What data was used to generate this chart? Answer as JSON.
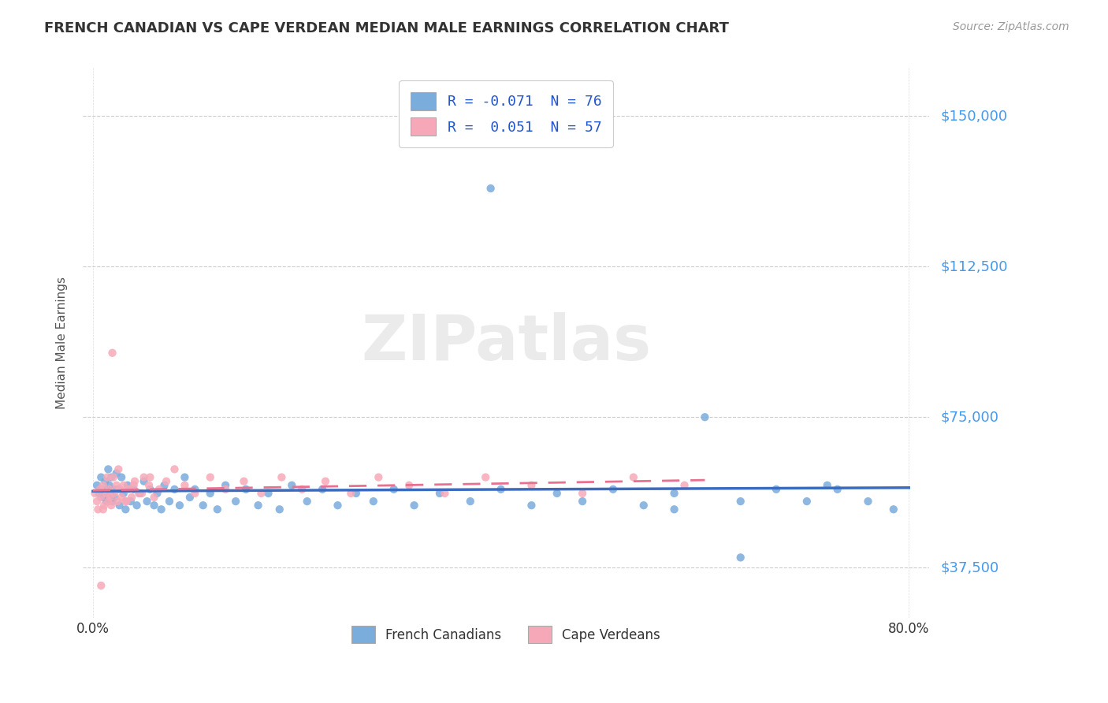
{
  "title": "FRENCH CANADIAN VS CAPE VERDEAN MEDIAN MALE EARNINGS CORRELATION CHART",
  "source": "Source: ZipAtlas.com",
  "ylabel": "Median Male Earnings",
  "xlim": [
    -0.01,
    0.82
  ],
  "ylim": [
    25000,
    162000
  ],
  "yticks": [
    37500,
    75000,
    112500,
    150000
  ],
  "ytick_labels": [
    "$37,500",
    "$75,000",
    "$112,500",
    "$150,000"
  ],
  "xticks": [
    0.0,
    0.8
  ],
  "xtick_labels": [
    "0.0%",
    "80.0%"
  ],
  "blue_color": "#7aacdc",
  "pink_color": "#f7a8b8",
  "blue_line_color": "#3a6bbf",
  "pink_line_color": "#e87090",
  "bg_color": "#ffffff",
  "legend_R_blue": "-0.071",
  "legend_N_blue": "76",
  "legend_R_pink": "0.051",
  "legend_N_pink": "57",
  "legend_label_blue": "French Canadians",
  "legend_label_pink": "Cape Verdeans",
  "watermark": "ZIPatlas",
  "blue_scatter_x": [
    0.004,
    0.006,
    0.008,
    0.009,
    0.011,
    0.012,
    0.013,
    0.014,
    0.015,
    0.016,
    0.017,
    0.018,
    0.019,
    0.02,
    0.021,
    0.023,
    0.025,
    0.026,
    0.028,
    0.03,
    0.032,
    0.034,
    0.037,
    0.04,
    0.043,
    0.046,
    0.05,
    0.053,
    0.056,
    0.06,
    0.063,
    0.067,
    0.07,
    0.075,
    0.08,
    0.085,
    0.09,
    0.095,
    0.1,
    0.108,
    0.115,
    0.122,
    0.13,
    0.14,
    0.15,
    0.162,
    0.172,
    0.183,
    0.195,
    0.21,
    0.225,
    0.24,
    0.258,
    0.275,
    0.295,
    0.315,
    0.34,
    0.37,
    0.4,
    0.43,
    0.39,
    0.455,
    0.48,
    0.51,
    0.54,
    0.57,
    0.6,
    0.635,
    0.67,
    0.7,
    0.73,
    0.76,
    0.785,
    0.72,
    0.635,
    0.57
  ],
  "blue_scatter_y": [
    58000,
    56000,
    60000,
    57000,
    55000,
    59000,
    54000,
    57000,
    62000,
    58000,
    56000,
    60000,
    54000,
    57000,
    55000,
    61000,
    57000,
    53000,
    60000,
    56000,
    52000,
    58000,
    54000,
    57000,
    53000,
    56000,
    59000,
    54000,
    57000,
    53000,
    56000,
    52000,
    58000,
    54000,
    57000,
    53000,
    60000,
    55000,
    57000,
    53000,
    56000,
    52000,
    58000,
    54000,
    57000,
    53000,
    56000,
    52000,
    58000,
    54000,
    57000,
    53000,
    56000,
    54000,
    57000,
    53000,
    56000,
    54000,
    57000,
    53000,
    132000,
    56000,
    54000,
    57000,
    53000,
    56000,
    75000,
    54000,
    57000,
    54000,
    57000,
    54000,
    52000,
    58000,
    40000,
    52000
  ],
  "pink_scatter_x": [
    0.002,
    0.004,
    0.005,
    0.007,
    0.008,
    0.01,
    0.011,
    0.013,
    0.014,
    0.015,
    0.016,
    0.017,
    0.018,
    0.02,
    0.021,
    0.023,
    0.024,
    0.026,
    0.028,
    0.03,
    0.032,
    0.035,
    0.038,
    0.041,
    0.045,
    0.05,
    0.055,
    0.06,
    0.065,
    0.072,
    0.08,
    0.09,
    0.1,
    0.115,
    0.13,
    0.148,
    0.165,
    0.185,
    0.205,
    0.228,
    0.253,
    0.28,
    0.31,
    0.345,
    0.385,
    0.43,
    0.48,
    0.53,
    0.58,
    0.025,
    0.033,
    0.04,
    0.048,
    0.056,
    0.019,
    0.01,
    0.008
  ],
  "pink_scatter_y": [
    56000,
    54000,
    52000,
    57000,
    55000,
    58000,
    53000,
    56000,
    60000,
    54000,
    57000,
    55000,
    53000,
    60000,
    56000,
    58000,
    54000,
    57000,
    55000,
    58000,
    54000,
    57000,
    55000,
    59000,
    56000,
    60000,
    58000,
    55000,
    57000,
    59000,
    62000,
    58000,
    56000,
    60000,
    57000,
    59000,
    56000,
    60000,
    57000,
    59000,
    56000,
    60000,
    58000,
    56000,
    60000,
    58000,
    56000,
    60000,
    58000,
    62000,
    54000,
    58000,
    56000,
    60000,
    91000,
    52000,
    33000
  ]
}
